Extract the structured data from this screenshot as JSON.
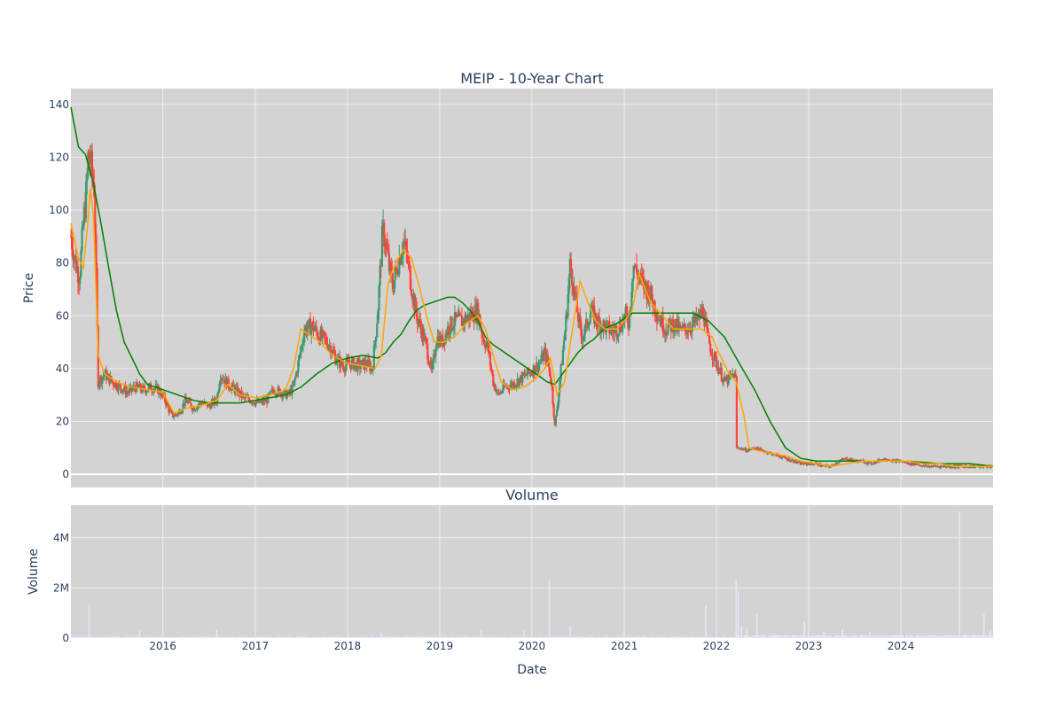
{
  "chart_data": [
    {
      "type": "candlestick",
      "title": "MEIP - 10-Year Chart",
      "ylabel": "Price",
      "xlabel": "",
      "x_range": [
        "2015-01-02",
        "2024-12-31"
      ],
      "ylim": [
        -5,
        146
      ],
      "y_ticks": [
        0,
        20,
        40,
        60,
        80,
        100,
        120,
        140
      ],
      "y_tick_labels": [
        "0",
        "20",
        "40",
        "60",
        "80",
        "100",
        "120",
        "140"
      ],
      "x_tick_labels": [
        "2016",
        "2017",
        "2018",
        "2019",
        "2020",
        "2021",
        "2022",
        "2023",
        "2024"
      ],
      "x_tick_dates": [
        "2016-01-01",
        "2017-01-01",
        "2018-01-01",
        "2019-01-01",
        "2020-01-01",
        "2021-01-01",
        "2022-01-01",
        "2023-01-01",
        "2024-01-01"
      ],
      "grid": true,
      "background": "#d3d3d3",
      "increasing_color": "#3d9970",
      "decreasing_color": "#ff4136",
      "close_series": {
        "x": [
          "2015-01-02",
          "2015-01-20",
          "2015-02-05",
          "2015-02-20",
          "2015-03-05",
          "2015-03-12",
          "2015-03-20",
          "2015-04-05",
          "2015-04-20",
          "2015-05-15",
          "2015-06-15",
          "2015-07-15",
          "2015-08-15",
          "2015-09-15",
          "2015-10-15",
          "2015-11-15",
          "2015-12-15",
          "2016-01-10",
          "2016-02-05",
          "2016-03-01",
          "2016-04-01",
          "2016-05-01",
          "2016-06-01",
          "2016-07-01",
          "2016-08-01",
          "2016-08-15",
          "2016-09-15",
          "2016-10-15",
          "2016-11-15",
          "2016-12-15",
          "2017-01-15",
          "2017-02-15",
          "2017-03-15",
          "2017-04-15",
          "2017-05-10",
          "2017-06-01",
          "2017-06-20",
          "2017-07-15",
          "2017-08-15",
          "2017-09-15",
          "2017-10-15",
          "2017-11-15",
          "2017-12-15",
          "2018-01-15",
          "2018-02-15",
          "2018-03-15",
          "2018-04-10",
          "2018-05-01",
          "2018-05-20",
          "2018-06-01",
          "2018-06-15",
          "2018-07-01",
          "2018-07-20",
          "2018-08-10",
          "2018-08-25",
          "2018-09-10",
          "2018-10-01",
          "2018-10-20",
          "2018-11-10",
          "2018-12-01",
          "2018-12-20",
          "2019-01-10",
          "2019-02-01",
          "2019-03-01",
          "2019-04-01",
          "2019-05-01",
          "2019-06-01",
          "2019-06-20",
          "2019-07-10",
          "2019-08-01",
          "2019-08-20",
          "2019-09-15",
          "2019-10-15",
          "2019-11-15",
          "2019-12-15",
          "2020-01-10",
          "2020-02-01",
          "2020-02-20",
          "2020-03-05",
          "2020-03-18",
          "2020-04-01",
          "2020-04-15",
          "2020-05-01",
          "2020-05-15",
          "2020-06-01",
          "2020-06-15",
          "2020-07-01",
          "2020-07-15",
          "2020-08-01",
          "2020-08-20",
          "2020-09-15",
          "2020-10-15",
          "2020-11-15",
          "2020-12-15",
          "2021-01-05",
          "2021-01-20",
          "2021-02-05",
          "2021-02-20",
          "2021-03-15",
          "2021-04-15",
          "2021-05-15",
          "2021-06-15",
          "2021-07-15",
          "2021-08-15",
          "2021-09-15",
          "2021-10-15",
          "2021-11-10",
          "2021-11-25",
          "2021-12-15",
          "2022-01-10",
          "2022-02-01",
          "2022-02-20",
          "2022-03-10",
          "2022-03-18",
          "2022-03-22",
          "2022-04-01",
          "2022-05-01",
          "2022-06-01",
          "2022-07-01",
          "2022-08-01",
          "2022-09-01",
          "2022-10-01",
          "2022-11-01",
          "2022-12-01",
          "2023-01-01",
          "2023-02-01",
          "2023-03-01",
          "2023-04-01",
          "2023-05-01",
          "2023-06-01",
          "2023-07-01",
          "2023-08-01",
          "2023-09-01",
          "2023-10-01",
          "2023-11-01",
          "2023-12-01",
          "2024-01-01",
          "2024-02-01",
          "2024-03-01",
          "2024-04-01",
          "2024-05-01",
          "2024-06-01",
          "2024-07-01",
          "2024-08-01",
          "2024-09-01",
          "2024-10-01",
          "2024-11-01",
          "2024-12-01",
          "2024-12-31"
        ],
        "y": [
          90,
          80,
          75,
          95,
          108,
          122,
          118,
          108,
          35,
          38,
          35,
          33,
          31,
          33,
          32,
          33,
          32,
          28,
          22,
          23,
          28,
          25,
          27,
          26,
          28,
          38,
          34,
          32,
          29,
          28,
          27,
          28,
          32,
          31,
          30,
          33,
          42,
          55,
          56,
          52,
          50,
          44,
          41,
          42,
          41,
          42,
          40,
          62,
          92,
          88,
          78,
          72,
          80,
          88,
          82,
          72,
          60,
          55,
          48,
          38,
          52,
          50,
          55,
          58,
          58,
          60,
          62,
          52,
          48,
          35,
          30,
          33,
          34,
          36,
          38,
          40,
          42,
          46,
          42,
          35,
          18,
          30,
          45,
          58,
          80,
          70,
          60,
          52,
          55,
          62,
          58,
          56,
          54,
          56,
          60,
          58,
          80,
          76,
          72,
          68,
          60,
          55,
          57,
          54,
          56,
          58,
          62,
          52,
          46,
          40,
          35,
          36,
          38,
          36,
          10,
          10,
          9,
          10,
          9,
          8,
          7,
          6,
          5,
          4,
          4,
          4,
          3,
          3,
          5,
          6,
          5,
          5,
          4,
          5,
          6,
          5,
          5,
          4,
          4,
          3,
          3,
          3,
          3,
          3,
          3,
          3,
          3,
          3,
          3
        ],
        "name": ""
      },
      "ma_short": {
        "x": [
          "2015-01-02",
          "2015-02-01",
          "2015-02-20",
          "2015-03-10",
          "2015-03-20",
          "2015-04-01",
          "2015-04-20",
          "2015-05-15",
          "2015-07-01",
          "2015-09-01",
          "2015-11-01",
          "2016-01-01",
          "2016-02-15",
          "2016-04-01",
          "2016-06-01",
          "2016-08-01",
          "2016-09-15",
          "2016-11-01",
          "2017-01-01",
          "2017-03-01",
          "2017-05-01",
          "2017-06-01",
          "2017-07-01",
          "2017-08-01",
          "2017-09-15",
          "2017-11-01",
          "2018-01-01",
          "2018-03-01",
          "2018-04-20",
          "2018-05-15",
          "2018-06-10",
          "2018-07-10",
          "2018-08-10",
          "2018-09-10",
          "2018-10-10",
          "2018-11-10",
          "2018-12-10",
          "2019-01-15",
          "2019-03-01",
          "2019-04-15",
          "2019-06-01",
          "2019-07-01",
          "2019-08-01",
          "2019-09-01",
          "2019-10-15",
          "2019-12-01",
          "2020-01-15",
          "2020-02-20",
          "2020-03-15",
          "2020-04-10",
          "2020-05-10",
          "2020-06-10",
          "2020-07-10",
          "2020-08-10",
          "2020-09-10",
          "2020-10-15",
          "2020-12-01",
          "2021-01-01",
          "2021-02-01",
          "2021-03-01",
          "2021-04-15",
          "2021-06-01",
          "2021-07-15",
          "2021-09-01",
          "2021-11-01",
          "2021-12-15",
          "2022-01-15",
          "2022-02-20",
          "2022-03-20",
          "2022-04-20",
          "2022-05-10",
          "2022-06-10",
          "2022-08-01",
          "2022-10-01",
          "2022-12-01",
          "2023-02-01",
          "2023-04-01",
          "2023-06-01",
          "2023-08-01",
          "2023-10-01",
          "2023-12-01",
          "2024-02-01",
          "2024-04-01",
          "2024-06-01",
          "2024-08-01",
          "2024-10-01",
          "2024-12-31"
        ],
        "y": [
          95,
          82,
          78,
          95,
          108,
          98,
          45,
          38,
          35,
          33,
          32,
          31,
          23,
          25,
          26,
          28,
          34,
          30,
          29,
          30,
          32,
          40,
          55,
          53,
          50,
          45,
          42,
          41,
          40,
          45,
          72,
          80,
          85,
          82,
          72,
          60,
          50,
          50,
          52,
          57,
          60,
          55,
          45,
          35,
          32,
          33,
          36,
          40,
          44,
          30,
          35,
          55,
          73,
          65,
          58,
          55,
          55,
          58,
          62,
          76,
          65,
          60,
          55,
          55,
          55,
          52,
          45,
          38,
          35,
          22,
          10,
          9,
          8,
          7,
          5,
          4,
          3,
          4,
          5,
          5,
          5,
          5,
          4,
          4,
          3,
          3,
          3
        ],
        "name": ""
      },
      "ma_long": {
        "x": [
          "2015-01-02",
          "2015-02-01",
          "2015-03-01",
          "2015-04-01",
          "2015-05-01",
          "2015-06-01",
          "2015-07-01",
          "2015-08-01",
          "2015-09-01",
          "2015-10-01",
          "2015-11-01",
          "2015-12-01",
          "2016-01-01",
          "2016-03-01",
          "2016-05-01",
          "2016-07-01",
          "2016-09-01",
          "2016-11-01",
          "2017-01-01",
          "2017-03-01",
          "2017-05-01",
          "2017-07-01",
          "2017-09-01",
          "2017-11-01",
          "2018-01-01",
          "2018-03-01",
          "2018-05-01",
          "2018-06-01",
          "2018-07-01",
          "2018-08-01",
          "2018-09-01",
          "2018-10-01",
          "2018-11-01",
          "2018-12-01",
          "2019-01-01",
          "2019-02-01",
          "2019-03-01",
          "2019-04-01",
          "2019-05-01",
          "2019-06-01",
          "2019-07-01",
          "2019-08-01",
          "2019-09-01",
          "2019-10-01",
          "2019-11-01",
          "2019-12-01",
          "2020-01-01",
          "2020-02-01",
          "2020-03-01",
          "2020-04-01",
          "2020-05-01",
          "2020-06-01",
          "2020-07-01",
          "2020-08-01",
          "2020-09-01",
          "2020-10-01",
          "2020-11-01",
          "2020-12-01",
          "2021-01-01",
          "2021-02-01",
          "2021-04-01",
          "2021-06-01",
          "2021-08-01",
          "2021-10-01",
          "2021-12-01",
          "2022-02-01",
          "2022-04-01",
          "2022-06-01",
          "2022-08-01",
          "2022-10-01",
          "2022-12-01",
          "2023-02-01",
          "2023-06-01",
          "2023-10-01",
          "2024-02-01",
          "2024-06-01",
          "2024-10-01",
          "2024-12-31"
        ],
        "y": [
          139,
          124,
          121,
          110,
          95,
          78,
          62,
          50,
          44,
          38,
          34,
          33,
          32,
          30,
          28,
          27,
          27,
          27,
          28,
          29,
          30,
          33,
          38,
          42,
          44,
          45,
          44,
          46,
          50,
          53,
          58,
          62,
          64,
          65,
          66,
          67,
          67,
          65,
          62,
          58,
          52,
          49,
          47,
          45,
          43,
          41,
          39,
          37,
          35,
          34,
          38,
          42,
          46,
          49,
          51,
          54,
          56,
          57,
          59,
          61,
          61,
          61,
          61,
          61,
          58,
          52,
          42,
          32,
          20,
          10,
          6,
          5,
          5,
          5,
          5,
          4,
          4,
          3
        ],
        "name": ""
      }
    },
    {
      "type": "bar",
      "title": "Volume",
      "ylabel": "Volume",
      "xlabel": "Date",
      "ylim": [
        0,
        5300000
      ],
      "y_ticks": [
        0,
        2000000,
        4000000
      ],
      "y_tick_labels": [
        "0",
        "2M",
        "4M"
      ],
      "x_tick_labels": [
        "2016",
        "2017",
        "2018",
        "2019",
        "2020",
        "2021",
        "2022",
        "2023",
        "2024"
      ],
      "x_tick_dates": [
        "2016-01-01",
        "2017-01-01",
        "2018-01-01",
        "2019-01-01",
        "2020-01-01",
        "2021-01-01",
        "2022-01-01",
        "2023-01-01",
        "2024-01-01"
      ],
      "bar_color": "#e6e6fa",
      "background": "#d3d3d3",
      "grid": true,
      "spikes": {
        "x": [
          "2015-03-15",
          "2015-10-01",
          "2016-08-01",
          "2018-05-15",
          "2019-06-15",
          "2019-12-01",
          "2020-03-10",
          "2020-06-01",
          "2021-11-20",
          "2022-03-20",
          "2022-03-28",
          "2022-04-10",
          "2022-05-01",
          "2022-06-10",
          "2022-12-15",
          "2023-03-01",
          "2023-05-15",
          "2023-09-01",
          "2024-08-20",
          "2024-11-25",
          "2024-12-20"
        ],
        "y": [
          1350000,
          300000,
          350000,
          200000,
          350000,
          280000,
          2350000,
          500000,
          1300000,
          2300000,
          1850000,
          500000,
          400000,
          950000,
          650000,
          250000,
          350000,
          250000,
          5050000,
          950000,
          300000
        ]
      }
    }
  ]
}
